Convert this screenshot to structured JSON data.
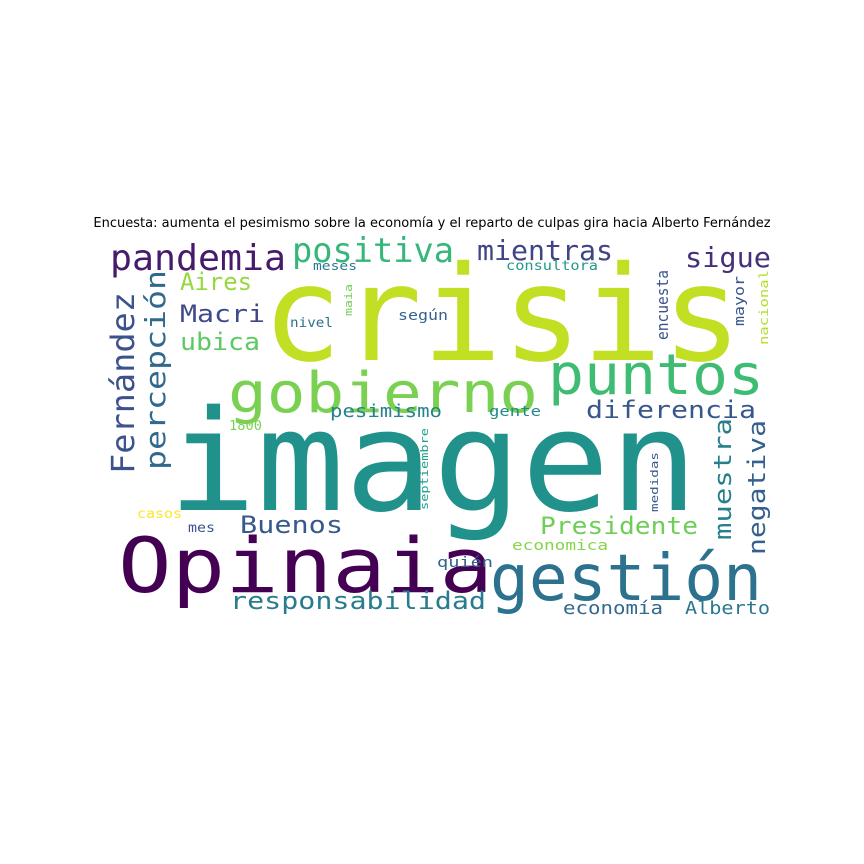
{
  "title": "Encuesta: aumenta el pesimismo sobre la economía y el reparto de culpas gira hacia Alberto Fernández",
  "words": [
    {
      "text": "crisis",
      "color": "#c2df23"
    },
    {
      "text": "imagen",
      "color": "#21918c"
    },
    {
      "text": "Opinaia",
      "color": "#440154"
    },
    {
      "text": "gestión",
      "color": "#2c728e"
    },
    {
      "text": "gobierno",
      "color": "#7ad151"
    },
    {
      "text": "puntos",
      "color": "#3fbc73"
    },
    {
      "text": "pandemia",
      "color": "#481a6c"
    },
    {
      "text": "positiva",
      "color": "#35b779"
    },
    {
      "text": "mientras",
      "color": "#414487"
    },
    {
      "text": "sigue",
      "color": "#472f7d"
    },
    {
      "text": "Fernández",
      "color": "#3b528b"
    },
    {
      "text": "percepción",
      "color": "#31688e"
    },
    {
      "text": "Aires",
      "color": "#95d840"
    },
    {
      "text": "Macri",
      "color": "#3e4a89"
    },
    {
      "text": "ubica",
      "color": "#5ec962"
    },
    {
      "text": "diferencia",
      "color": "#38588c"
    },
    {
      "text": "pesimismo",
      "color": "#26828e"
    },
    {
      "text": "muestra",
      "color": "#277f8e"
    },
    {
      "text": "negativa",
      "color": "#355f8d"
    },
    {
      "text": "Buenos",
      "color": "#375a8c"
    },
    {
      "text": "Presidente",
      "color": "#6ece58"
    },
    {
      "text": "responsabilidad",
      "color": "#287c8e"
    },
    {
      "text": "economía",
      "color": "#31688e"
    },
    {
      "text": "Alberto",
      "color": "#2a788e"
    },
    {
      "text": "meses",
      "color": "#2a788e"
    },
    {
      "text": "consultora",
      "color": "#1f988b"
    },
    {
      "text": "nivel",
      "color": "#2c728e"
    },
    {
      "text": "según",
      "color": "#33638d"
    },
    {
      "text": "maia",
      "color": "#73d056"
    },
    {
      "text": "encuesta",
      "color": "#3b528b"
    },
    {
      "text": "mayor",
      "color": "#39558c"
    },
    {
      "text": "nacional",
      "color": "#b5de2b"
    },
    {
      "text": "gente",
      "color": "#23888e"
    },
    {
      "text": "1800",
      "color": "#7ad151"
    },
    {
      "text": "septiembre",
      "color": "#1f9e89"
    },
    {
      "text": "medidas",
      "color": "#39568c"
    },
    {
      "text": "casos",
      "color": "#fde725"
    },
    {
      "text": "mes",
      "color": "#3b528b"
    },
    {
      "text": "quién",
      "color": "#33638d"
    },
    {
      "text": "economica",
      "color": "#86d549"
    }
  ]
}
